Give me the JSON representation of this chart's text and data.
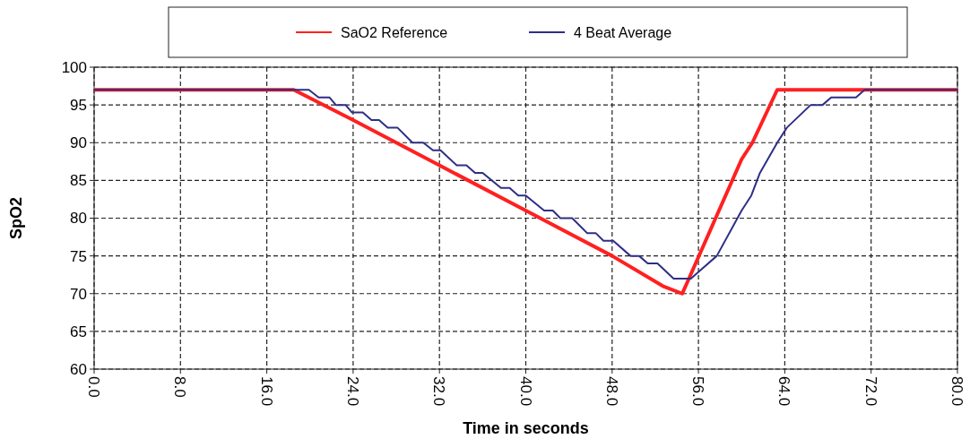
{
  "chart_data": {
    "type": "line",
    "xlabel": "Time in seconds",
    "ylabel": "SpO2",
    "xlim": [
      0,
      80
    ],
    "ylim": [
      60,
      100
    ],
    "xticks": [
      {
        "value": 0,
        "label": "0.0"
      },
      {
        "value": 8,
        "label": "8.0"
      },
      {
        "value": 16,
        "label": "16.0"
      },
      {
        "value": 24,
        "label": "24.0"
      },
      {
        "value": 32,
        "label": "32.0"
      },
      {
        "value": 40,
        "label": "40.0"
      },
      {
        "value": 48,
        "label": "48.0"
      },
      {
        "value": 56,
        "label": "56.0"
      },
      {
        "value": 64,
        "label": "64.0"
      },
      {
        "value": 72,
        "label": "72.0"
      },
      {
        "value": 80,
        "label": "80.0"
      }
    ],
    "yticks": [
      60,
      65,
      70,
      75,
      80,
      85,
      90,
      95,
      100
    ],
    "grid": true,
    "legend": "top",
    "marker": "none",
    "line_style": "solid",
    "series": [
      {
        "name": "SaO2 Reference",
        "color": "#ff2020",
        "x": [
          0,
          18.5,
          24,
          28,
          32,
          40,
          48,
          52.7,
          54.5,
          60,
          61,
          63.3,
          80
        ],
        "values": [
          97,
          97,
          93,
          90,
          87,
          81,
          75,
          71,
          70,
          87.8,
          90,
          97,
          97
        ]
      },
      {
        "name": "4 Beat Average",
        "color": "#2e2e86",
        "x": [
          0,
          19.9,
          20.8,
          21.8,
          22.4,
          23.3,
          23.9,
          24.9,
          25.7,
          26.4,
          27.2,
          28.1,
          29.5,
          30.5,
          31.4,
          32.1,
          33.6,
          34.5,
          35.3,
          36,
          37.7,
          38.5,
          39.3,
          40,
          41.7,
          42.5,
          43.2,
          44.3,
          45.7,
          46.5,
          47.2,
          48.1,
          49.7,
          50.5,
          51.3,
          52.2,
          53.7,
          55.3,
          56.1,
          57.7,
          60,
          60.9,
          61.7,
          63.3,
          64.2,
          66.4,
          67.5,
          68.3,
          70.6,
          71.4,
          80
        ],
        "values": [
          97,
          97,
          96,
          96,
          95,
          95,
          94,
          94,
          93,
          93,
          92,
          92,
          90,
          90,
          89,
          89,
          87,
          87,
          86,
          86,
          84,
          84,
          83,
          83,
          81,
          81,
          80,
          80,
          78,
          78,
          77,
          77,
          75,
          75,
          74,
          74,
          72,
          72,
          73,
          75,
          81,
          83,
          86,
          90,
          92,
          95,
          95,
          96,
          96,
          97,
          97
        ]
      }
    ]
  }
}
